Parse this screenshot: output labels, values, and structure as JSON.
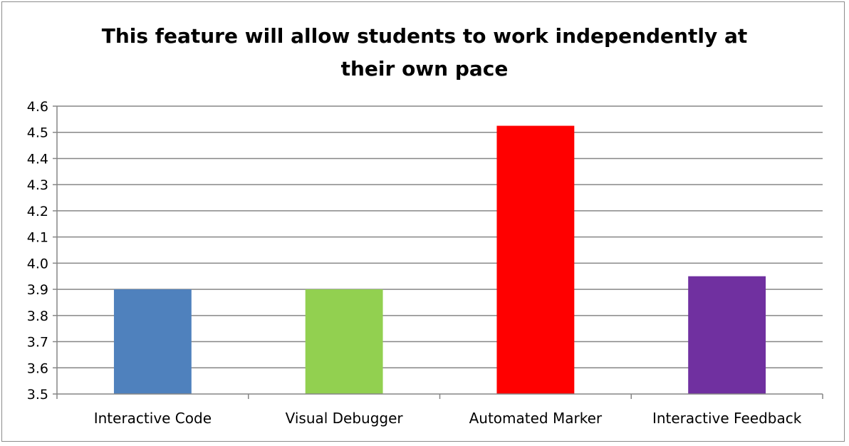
{
  "chart_data": {
    "type": "bar",
    "title_lines": [
      "This feature will allow students to work independently at",
      "their own pace"
    ],
    "categories": [
      "Interactive Code",
      "Visual Debugger",
      "Automated Marker",
      "Interactive Feedback"
    ],
    "values": [
      3.9,
      3.9,
      4.525,
      3.95
    ],
    "colors": [
      "#4f81bd",
      "#92d050",
      "#ff0000",
      "#7030a0"
    ],
    "ylim": [
      3.5,
      4.6
    ],
    "yticks": [
      "3.5",
      "3.6",
      "3.7",
      "3.8",
      "3.9",
      "4.0",
      "4.1",
      "4.2",
      "4.3",
      "4.4",
      "4.5",
      "4.6"
    ],
    "grid": true,
    "legend": "none"
  }
}
